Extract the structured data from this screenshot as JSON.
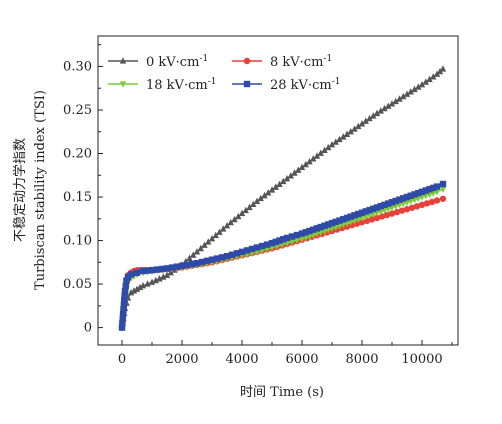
{
  "chart_data": {
    "type": "line",
    "xlabel": "时间 Time (s)",
    "ylabel_cn": "不稳定动力学指数",
    "ylabel_en": "Turbiscan stability index (TSI)",
    "xlim": [
      -800,
      11200
    ],
    "ylim": [
      -0.02,
      0.335
    ],
    "xticks": [
      0,
      2000,
      4000,
      6000,
      8000,
      10000
    ],
    "xtick_labels": [
      "0",
      "2000",
      "4000",
      "6000",
      "8000",
      "10000"
    ],
    "yticks": [
      0,
      0.05,
      0.1,
      0.15,
      0.2,
      0.25,
      0.3
    ],
    "ytick_labels": [
      "0",
      "0.05",
      "0.10",
      "0.15",
      "0.20",
      "0.25",
      "0.30"
    ],
    "grid": false,
    "legend_position": "top-left",
    "series": [
      {
        "name_main": "0 kV·cm",
        "name_sup": "-1",
        "color": "#555555",
        "marker": "triangle-up",
        "x": [
          0,
          100,
          200,
          300,
          500,
          700,
          1000,
          1500,
          2000,
          2500,
          3000,
          3500,
          4000,
          4500,
          5000,
          5500,
          6000,
          6500,
          7000,
          7500,
          8000,
          8500,
          9000,
          9500,
          10000,
          10500,
          10700
        ],
        "y": [
          0,
          0.022,
          0.034,
          0.04,
          0.044,
          0.048,
          0.052,
          0.06,
          0.072,
          0.087,
          0.102,
          0.117,
          0.131,
          0.145,
          0.158,
          0.171,
          0.184,
          0.197,
          0.21,
          0.222,
          0.234,
          0.246,
          0.257,
          0.268,
          0.279,
          0.291,
          0.297
        ]
      },
      {
        "name_main": "8 kV·cm",
        "name_sup": "-1",
        "color": "#e8413a",
        "marker": "circle",
        "x": [
          0,
          100,
          150,
          200,
          300,
          400,
          500,
          600,
          700,
          800,
          1000,
          1500,
          2000,
          2500,
          3000,
          3500,
          4000,
          4500,
          5000,
          5500,
          6000,
          6500,
          7000,
          7500,
          8000,
          8500,
          9000,
          9500,
          10000,
          10500,
          10700
        ],
        "y": [
          0,
          0.04,
          0.055,
          0.06,
          0.063,
          0.065,
          0.066,
          0.066,
          0.066,
          0.066,
          0.066,
          0.067,
          0.069,
          0.072,
          0.075,
          0.079,
          0.083,
          0.087,
          0.091,
          0.096,
          0.101,
          0.106,
          0.111,
          0.116,
          0.121,
          0.126,
          0.131,
          0.136,
          0.141,
          0.146,
          0.148
        ]
      },
      {
        "name_main": "18 kV·cm",
        "name_sup": "-1",
        "color": "#7ccc3a",
        "marker": "triangle-down",
        "x": [
          0,
          100,
          150,
          200,
          300,
          500,
          700,
          1000,
          1500,
          2000,
          2500,
          3000,
          3500,
          4000,
          4500,
          5000,
          5500,
          6000,
          6500,
          7000,
          7500,
          8000,
          8500,
          9000,
          9500,
          10000,
          10500,
          10700
        ],
        "y": [
          0,
          0.03,
          0.045,
          0.052,
          0.057,
          0.061,
          0.063,
          0.065,
          0.067,
          0.069,
          0.072,
          0.075,
          0.079,
          0.083,
          0.087,
          0.092,
          0.097,
          0.102,
          0.108,
          0.114,
          0.12,
          0.126,
          0.132,
          0.138,
          0.144,
          0.15,
          0.156,
          0.159
        ]
      },
      {
        "name_main": "28 kV·cm",
        "name_sup": "-1",
        "color": "#2f4aa8",
        "marker": "square",
        "x": [
          0,
          100,
          150,
          200,
          300,
          500,
          700,
          1000,
          1500,
          2000,
          2500,
          3000,
          3500,
          4000,
          4500,
          5000,
          5500,
          6000,
          6500,
          7000,
          7500,
          8000,
          8500,
          9000,
          9500,
          10000,
          10500,
          10700
        ],
        "y": [
          0,
          0.042,
          0.054,
          0.058,
          0.061,
          0.063,
          0.065,
          0.066,
          0.068,
          0.071,
          0.074,
          0.078,
          0.082,
          0.087,
          0.092,
          0.097,
          0.103,
          0.108,
          0.114,
          0.12,
          0.126,
          0.132,
          0.138,
          0.144,
          0.15,
          0.156,
          0.162,
          0.165
        ]
      }
    ]
  }
}
